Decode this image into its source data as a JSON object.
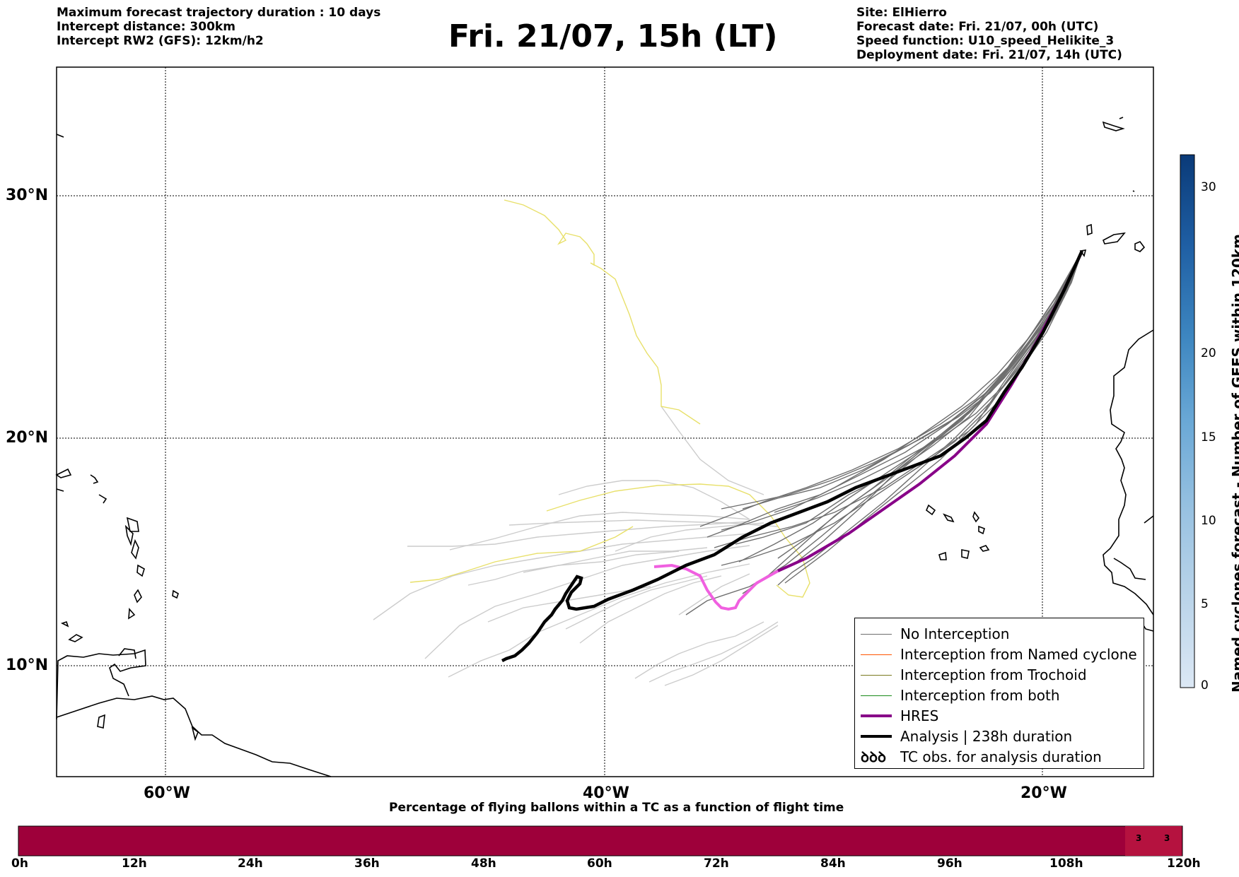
{
  "header": {
    "left_lines": [
      "Maximum forecast trajectory duration : 10 days",
      "Intercept distance: 300km",
      "Intercept RW2 (GFS):  12km/h2"
    ],
    "title": "Fri. 21/07, 15h (LT)",
    "right_lines": [
      "Site: ElHierro",
      "Forecast date: Fri. 21/07, 00h (UTC)",
      "Speed function: U10_speed_Helikite_3",
      "Deployment date: Fri. 21/07, 14h (UTC)"
    ]
  },
  "map": {
    "lat_labels": [
      "30°N",
      "20°N",
      "10°N"
    ],
    "lon_labels": [
      "60°W",
      "40°W",
      "20°W"
    ],
    "colors": {
      "no_interception": "#6e6e6e",
      "named_cyclone": "#ff5500",
      "trochoid": "#7a7a20",
      "both": "#1a8a1a",
      "hres": "#880088",
      "analysis": "#000000",
      "light_tracks": "#cccccc",
      "yellow_tracks": "#e8e06a",
      "pink_track": "#f060e0"
    }
  },
  "legend": {
    "items": [
      {
        "label": "No Interception",
        "color": "#6e6e6e",
        "weight": "thin"
      },
      {
        "label": "Interception from Named cyclone",
        "color": "#ff5500",
        "weight": "thin"
      },
      {
        "label": "Interception from Trochoid",
        "color": "#7a7a20",
        "weight": "thin"
      },
      {
        "label": "Interception from both",
        "color": "#1a8a1a",
        "weight": "thin"
      },
      {
        "label": "HRES",
        "color": "#880088",
        "weight": "thick"
      },
      {
        "label": "Analysis | 238h duration",
        "color": "#000000",
        "weight": "thick"
      },
      {
        "label": "TC obs. for analysis duration",
        "color": "#000000",
        "weight": "symbol"
      }
    ],
    "tc_symbol": "ꝺꝺꝺ"
  },
  "colorbar": {
    "label": "Named cyclones forecast - Number of GEFS within 120km",
    "ticks": [
      "0",
      "5",
      "10",
      "15",
      "20",
      "30"
    ],
    "colors": [
      "#dce8f5",
      "#bcd5ea",
      "#99c2e1",
      "#6aa8d6",
      "#3d86c0",
      "#1f5fa4",
      "#0a3a78"
    ]
  },
  "timeline": {
    "title": "Percentage of flying ballons within a TC as a function of flight time",
    "ticks": [
      "0h",
      "12h",
      "24h",
      "36h",
      "48h",
      "60h",
      "72h",
      "84h",
      "96h",
      "108h",
      "120h"
    ],
    "cell_values": [
      "3",
      "3"
    ],
    "bar_color": "#9e003a",
    "cell_color": "#b5123f"
  }
}
